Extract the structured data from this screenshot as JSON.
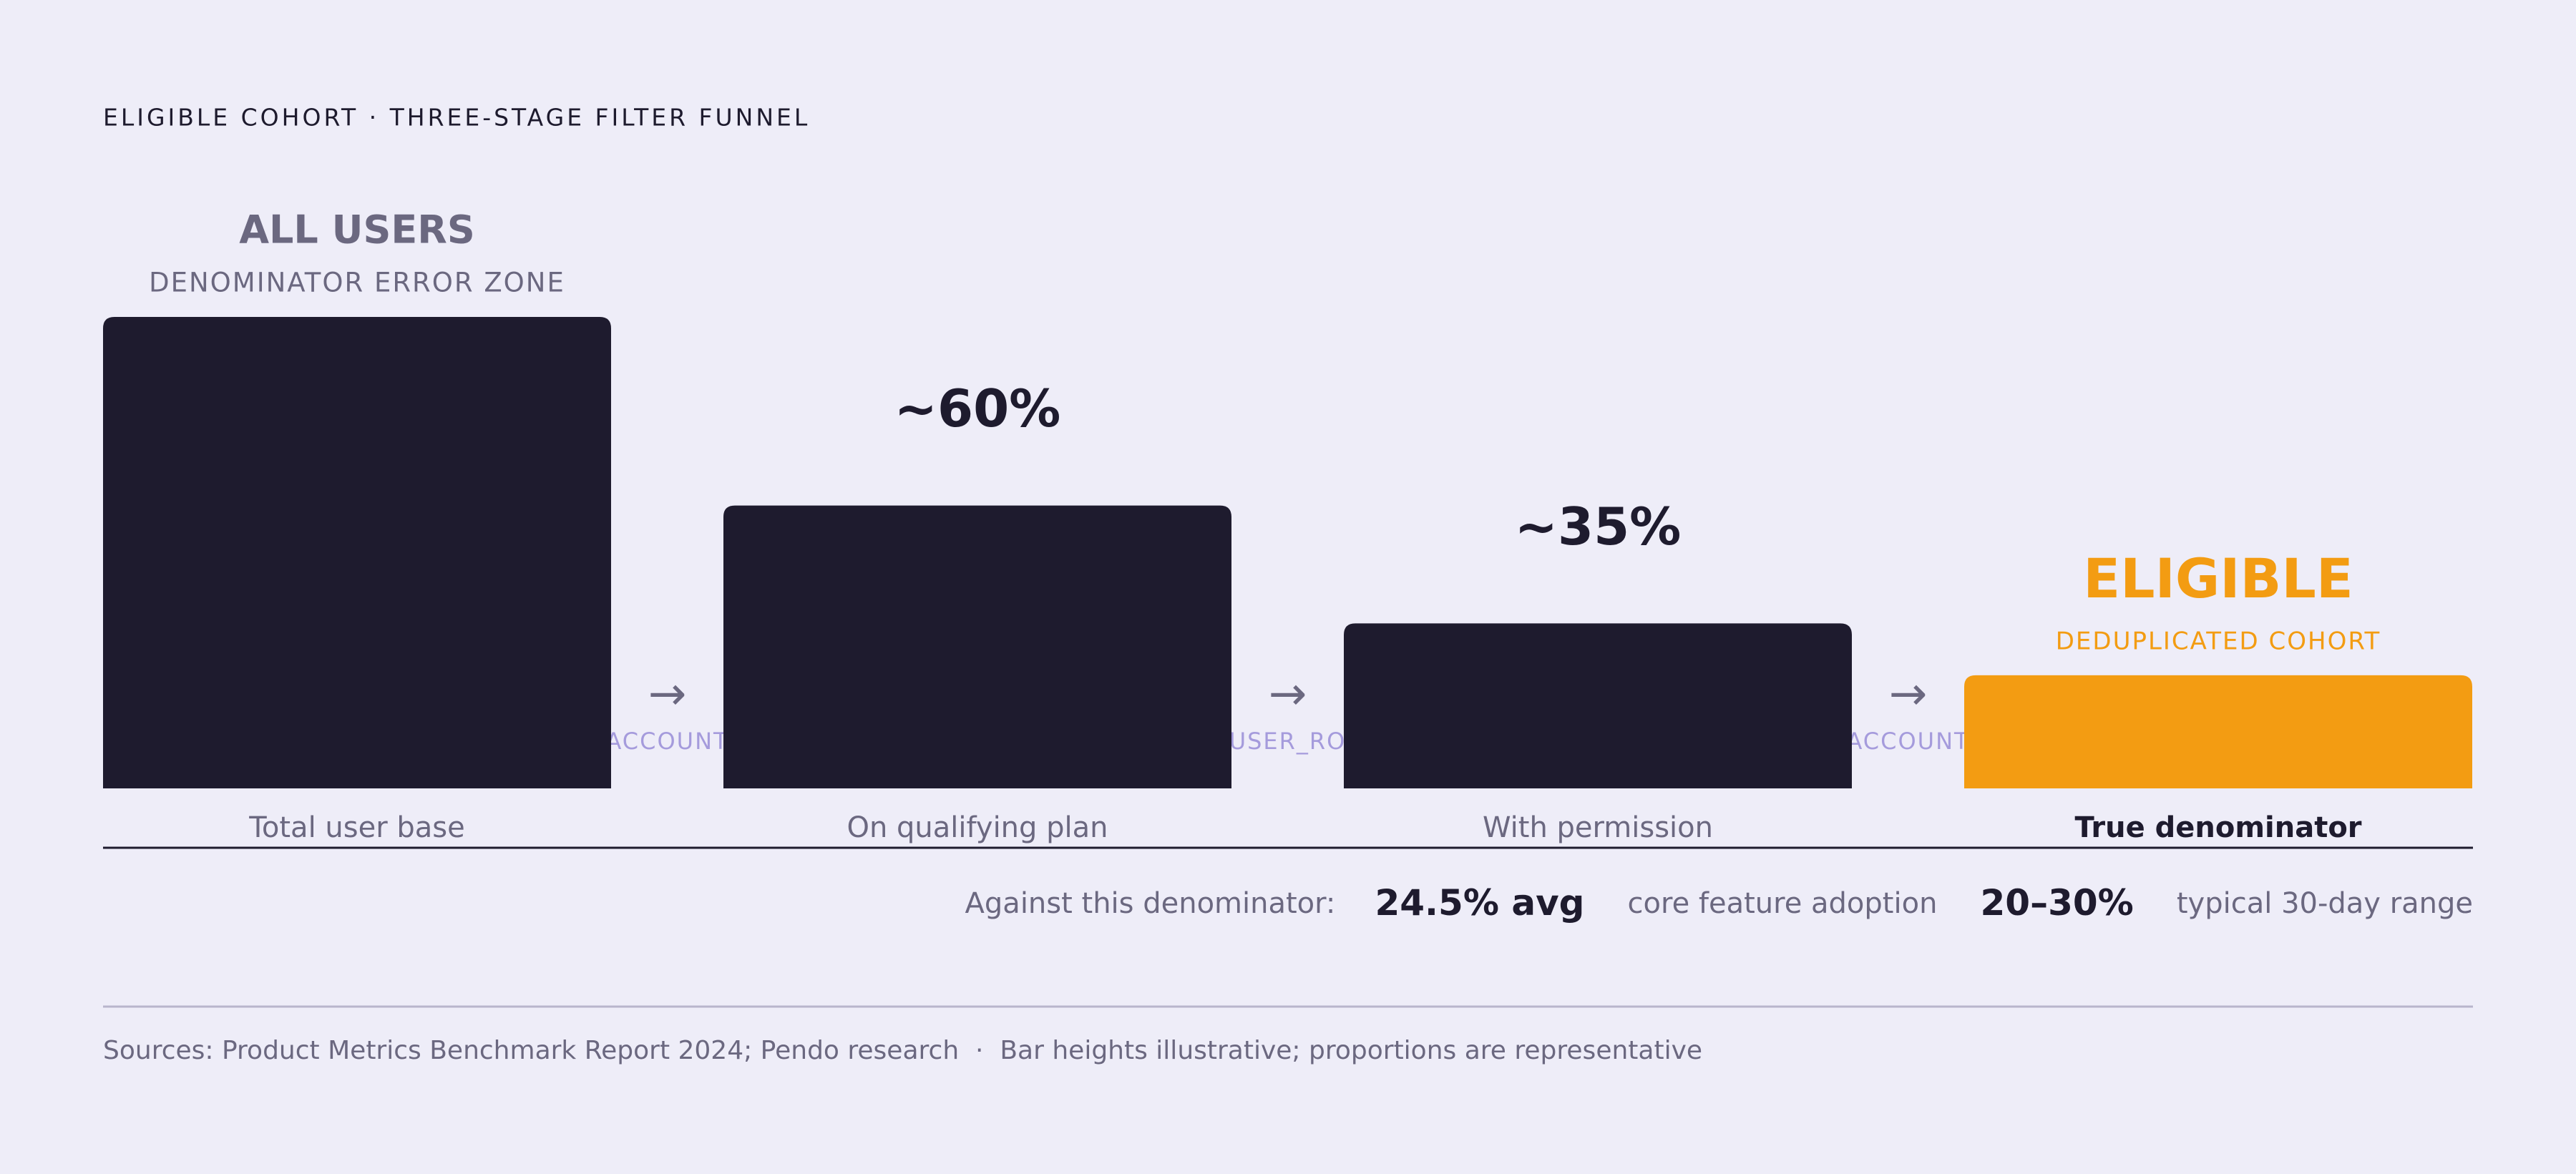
{
  "chart_data": {
    "type": "bar",
    "title": "ELIGIBLE COHORT · THREE-STAGE FILTER FUNNEL",
    "categories": [
      "Total user base",
      "On qualifying plan",
      "With permission",
      "True denominator"
    ],
    "values": [
      100,
      60,
      35,
      24
    ],
    "value_labels": [
      null,
      "~60%",
      "~35%",
      null
    ],
    "stage_titles": [
      "ALL USERS",
      null,
      null,
      "ELIGIBLE"
    ],
    "stage_subtitles": [
      "DENOMINATOR ERROR ZONE",
      null,
      null,
      "DEDUPLICATED COHORT"
    ],
    "colors": [
      "#1e1b2e",
      "#1e1b2e",
      "#1e1b2e",
      "#f39c12"
    ],
    "transitions": [
      "ACCOUNT",
      "USER_RO",
      "ACCOUNT"
    ],
    "summary": {
      "lead": "Against this denominator:",
      "stats": [
        {
          "value": "24.5% avg",
          "label": "core feature adoption"
        },
        {
          "value": "20–30%",
          "label": "typical 30-day range"
        }
      ]
    },
    "footer": "Sources: Product Metrics Benchmark Report 2024; Pendo research  ·  Bar heights illustrative; proportions are representative"
  }
}
